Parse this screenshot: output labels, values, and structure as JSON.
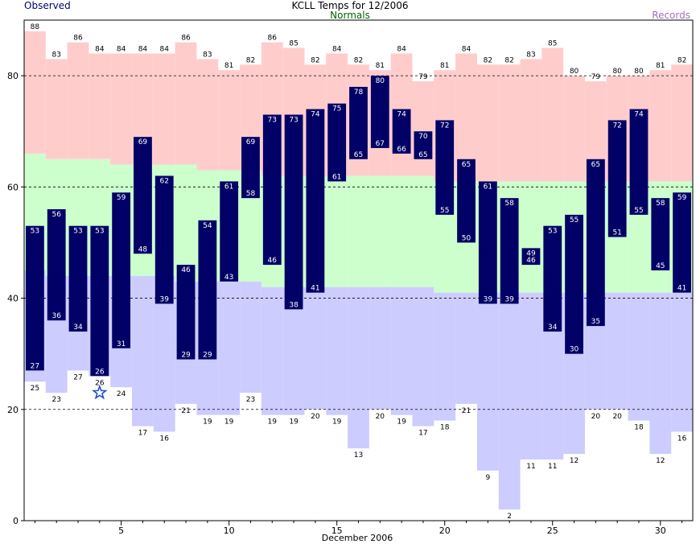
{
  "chart_data": {
    "type": "bar",
    "title": "KCLL Temps for 12/2006",
    "legend": {
      "observed": "Observed",
      "normals": "Normals",
      "records": "Records",
      "placement": "top"
    },
    "xlabel": "December 2006",
    "ylabel": "",
    "xlim": [
      0.5,
      31.5
    ],
    "ylim": [
      0,
      90
    ],
    "x_ticks": [
      5,
      10,
      15,
      20,
      25,
      30
    ],
    "y_ticks": [
      0,
      20,
      40,
      60,
      80
    ],
    "grid": "horizontal dashed at 20, 40, 60, 80",
    "days": [
      1,
      2,
      3,
      4,
      5,
      6,
      7,
      8,
      9,
      10,
      11,
      12,
      13,
      14,
      15,
      16,
      17,
      18,
      19,
      20,
      21,
      22,
      23,
      24,
      25,
      26,
      27,
      28,
      29,
      30,
      31
    ],
    "record_high": [
      88,
      83,
      86,
      84,
      84,
      84,
      84,
      86,
      83,
      81,
      82,
      86,
      85,
      82,
      84,
      82,
      81,
      84,
      79,
      81,
      84,
      82,
      82,
      83,
      85,
      80,
      79,
      80,
      80,
      81,
      82
    ],
    "normal_high": [
      66,
      65,
      65,
      65,
      64,
      64,
      64,
      64,
      63,
      63,
      63,
      62,
      62,
      62,
      62,
      62,
      62,
      62,
      62,
      61,
      61,
      61,
      61,
      61,
      61,
      61,
      61,
      61,
      61,
      61,
      61
    ],
    "normal_low": [
      45,
      44,
      44,
      44,
      44,
      44,
      44,
      43,
      43,
      43,
      43,
      42,
      42,
      42,
      42,
      42,
      42,
      42,
      42,
      41,
      41,
      41,
      41,
      41,
      41,
      41,
      41,
      41,
      41,
      41,
      41
    ],
    "record_low": [
      25,
      23,
      27,
      26,
      24,
      17,
      16,
      21,
      19,
      19,
      23,
      19,
      19,
      20,
      19,
      13,
      20,
      19,
      17,
      18,
      21,
      9,
      2,
      11,
      11,
      12,
      20,
      20,
      18,
      12,
      16
    ],
    "observed_high": [
      53,
      56,
      53,
      53,
      59,
      69,
      62,
      46,
      54,
      61,
      69,
      73,
      73,
      74,
      75,
      78,
      80,
      74,
      70,
      72,
      65,
      61,
      58,
      49,
      53,
      55,
      65,
      72,
      74,
      58,
      59
    ],
    "observed_low": [
      27,
      36,
      34,
      26,
      31,
      48,
      39,
      29,
      29,
      43,
      58,
      46,
      38,
      41,
      61,
      65,
      67,
      66,
      65,
      55,
      50,
      39,
      39,
      46,
      34,
      30,
      35,
      51,
      55,
      45,
      41
    ],
    "record_set_marker": {
      "day": 4,
      "value": 23,
      "symbol": "star"
    },
    "colors": {
      "record_band": "#ffcccc",
      "normal_band": "#ccffcc",
      "low_band": "#ccccff",
      "observed_bar": "#000066",
      "grid": "#000000",
      "star": "#2050d0"
    }
  }
}
